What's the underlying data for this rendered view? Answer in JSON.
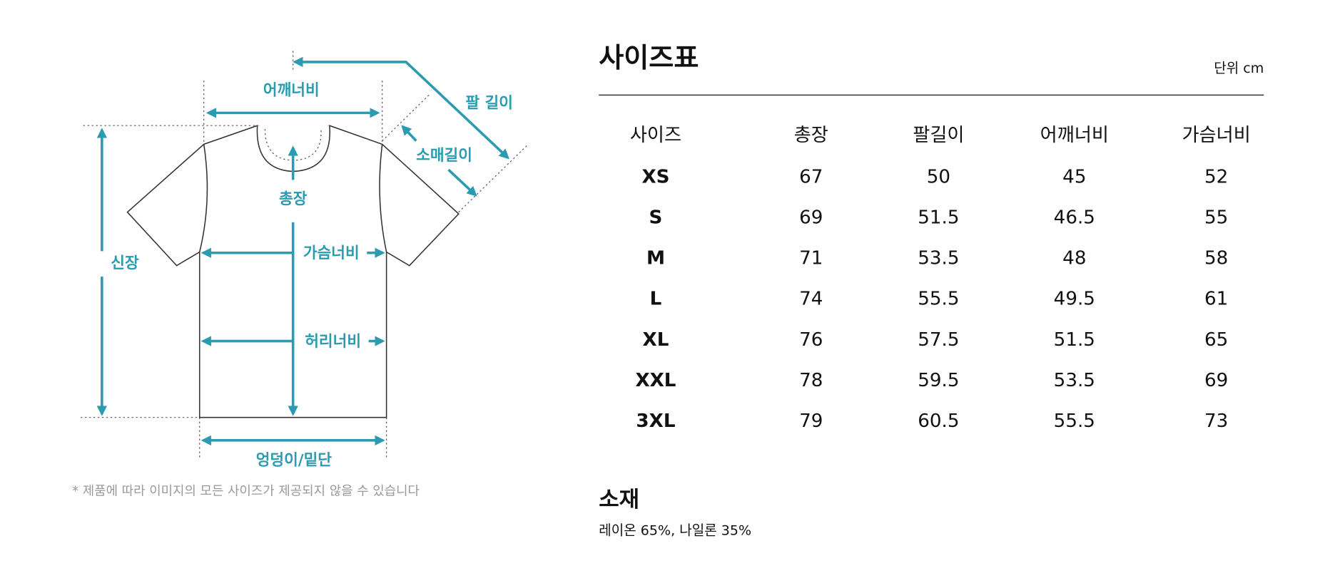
{
  "diagram": {
    "labels": {
      "shoulder": "어깨너비",
      "arm_length": "팔 길이",
      "sleeve": "소매길이",
      "total_length": "총장",
      "height": "신장",
      "chest": "가슴너비",
      "waist": "허리너비",
      "hem": "엉덩이/밑단"
    },
    "note": "* 제품에 따라 이미지의 모든 사이즈가 제공되지 않을 수 있습니다"
  },
  "size_table": {
    "title": "사이즈표",
    "unit": "단위 cm",
    "headers": [
      "사이즈",
      "총장",
      "팔길이",
      "어깨너비",
      "가슴너비"
    ],
    "rows": [
      [
        "XS",
        "67",
        "50",
        "45",
        "52"
      ],
      [
        "S",
        "69",
        "51.5",
        "46.5",
        "55"
      ],
      [
        "M",
        "71",
        "53.5",
        "48",
        "58"
      ],
      [
        "L",
        "74",
        "55.5",
        "49.5",
        "61"
      ],
      [
        "XL",
        "76",
        "57.5",
        "51.5",
        "65"
      ],
      [
        "XXL",
        "78",
        "59.5",
        "53.5",
        "69"
      ],
      [
        "3XL",
        "79",
        "60.5",
        "55.5",
        "73"
      ]
    ]
  },
  "material": {
    "title": "소재",
    "text": "레이온 65%, 나일론 35%"
  }
}
